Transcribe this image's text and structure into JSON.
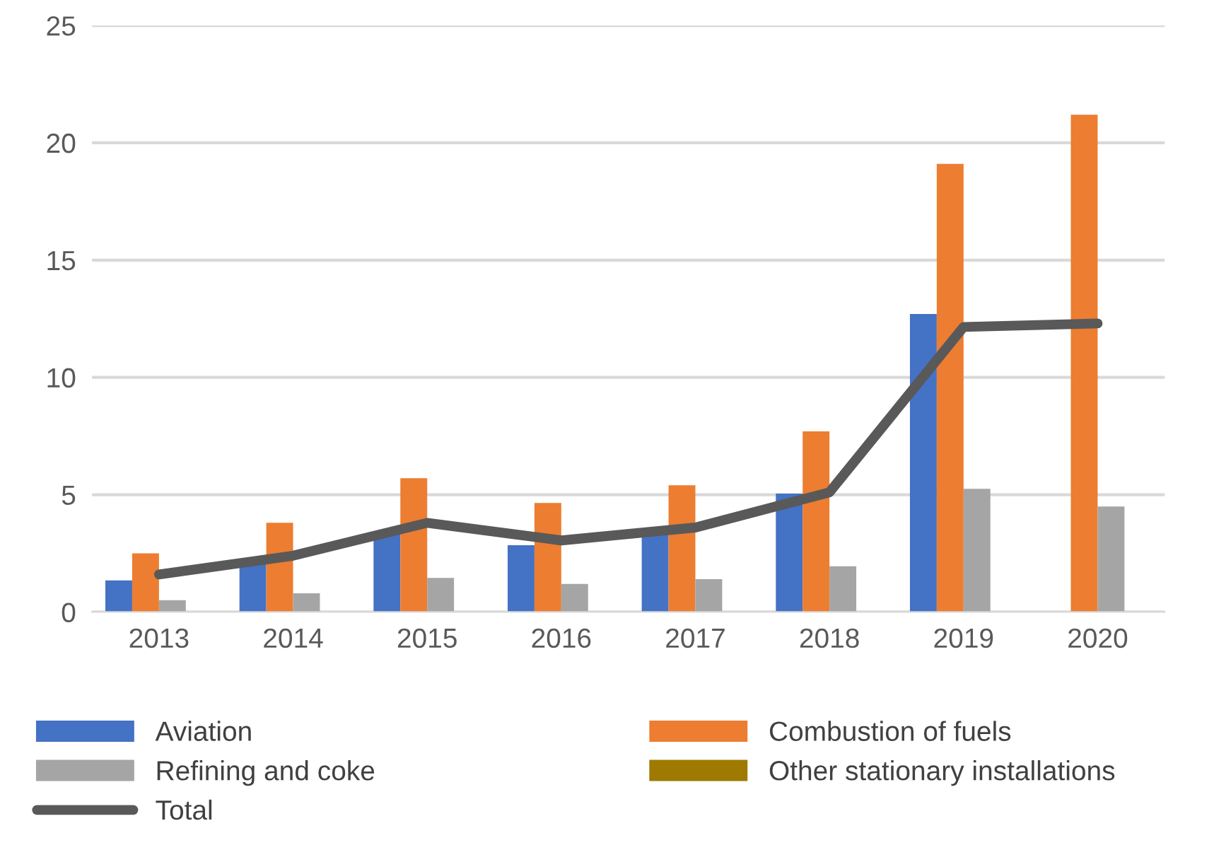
{
  "chart_data": {
    "type": "bar",
    "categories": [
      "2013",
      "2014",
      "2015",
      "2016",
      "2017",
      "2018",
      "2019",
      "2020"
    ],
    "series": [
      {
        "name": "Aviation",
        "color": "#4472c4",
        "values": [
          1.35,
          2.1,
          3.4,
          2.85,
          3.3,
          5.05,
          12.7,
          null
        ]
      },
      {
        "name": "Combustion of fuels",
        "color": "#ed7d31",
        "values": [
          2.5,
          3.8,
          5.7,
          4.65,
          5.4,
          7.7,
          19.1,
          21.2
        ]
      },
      {
        "name": "Refining and coke",
        "color": "#a5a5a5",
        "values": [
          0.5,
          0.8,
          1.45,
          1.2,
          1.4,
          1.95,
          5.25,
          4.5
        ]
      },
      {
        "name": "Other stationary installations",
        "color": "#9e7a00",
        "values": [
          0,
          0,
          0,
          0,
          0,
          0,
          0,
          0
        ]
      },
      {
        "name": "Total",
        "type": "line",
        "color": "#595959",
        "values": [
          1.6,
          2.4,
          3.8,
          3.05,
          3.6,
          5.1,
          12.15,
          12.3
        ]
      }
    ],
    "ylim": [
      0,
      25
    ],
    "yticks": [
      0,
      5,
      10,
      15,
      20,
      25
    ],
    "grid": "y",
    "legend": "bottom"
  }
}
